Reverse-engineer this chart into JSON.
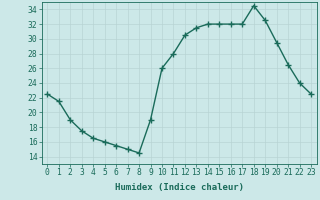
{
  "x": [
    0,
    1,
    2,
    3,
    4,
    5,
    6,
    7,
    8,
    9,
    10,
    11,
    12,
    13,
    14,
    15,
    16,
    17,
    18,
    19,
    20,
    21,
    22,
    23
  ],
  "y": [
    22.5,
    21.5,
    19.0,
    17.5,
    16.5,
    16.0,
    15.5,
    15.0,
    14.5,
    19.0,
    26.0,
    28.0,
    30.5,
    31.5,
    32.0,
    32.0,
    32.0,
    32.0,
    34.5,
    32.5,
    29.5,
    26.5,
    24.0,
    22.5
  ],
  "line_color": "#1a6b5a",
  "marker": "+",
  "markersize": 4,
  "linewidth": 1.0,
  "bg_color": "#cce8e8",
  "grid_color": "#b8d4d4",
  "xlabel": "Humidex (Indice chaleur)",
  "ylim": [
    13,
    35
  ],
  "xlim": [
    -0.5,
    23.5
  ],
  "yticks": [
    14,
    16,
    18,
    20,
    22,
    24,
    26,
    28,
    30,
    32,
    34
  ],
  "xticks": [
    0,
    1,
    2,
    3,
    4,
    5,
    6,
    7,
    8,
    9,
    10,
    11,
    12,
    13,
    14,
    15,
    16,
    17,
    18,
    19,
    20,
    21,
    22,
    23
  ],
  "tick_color": "#1a6b5a",
  "label_fontsize": 6.5,
  "tick_fontsize": 5.8
}
